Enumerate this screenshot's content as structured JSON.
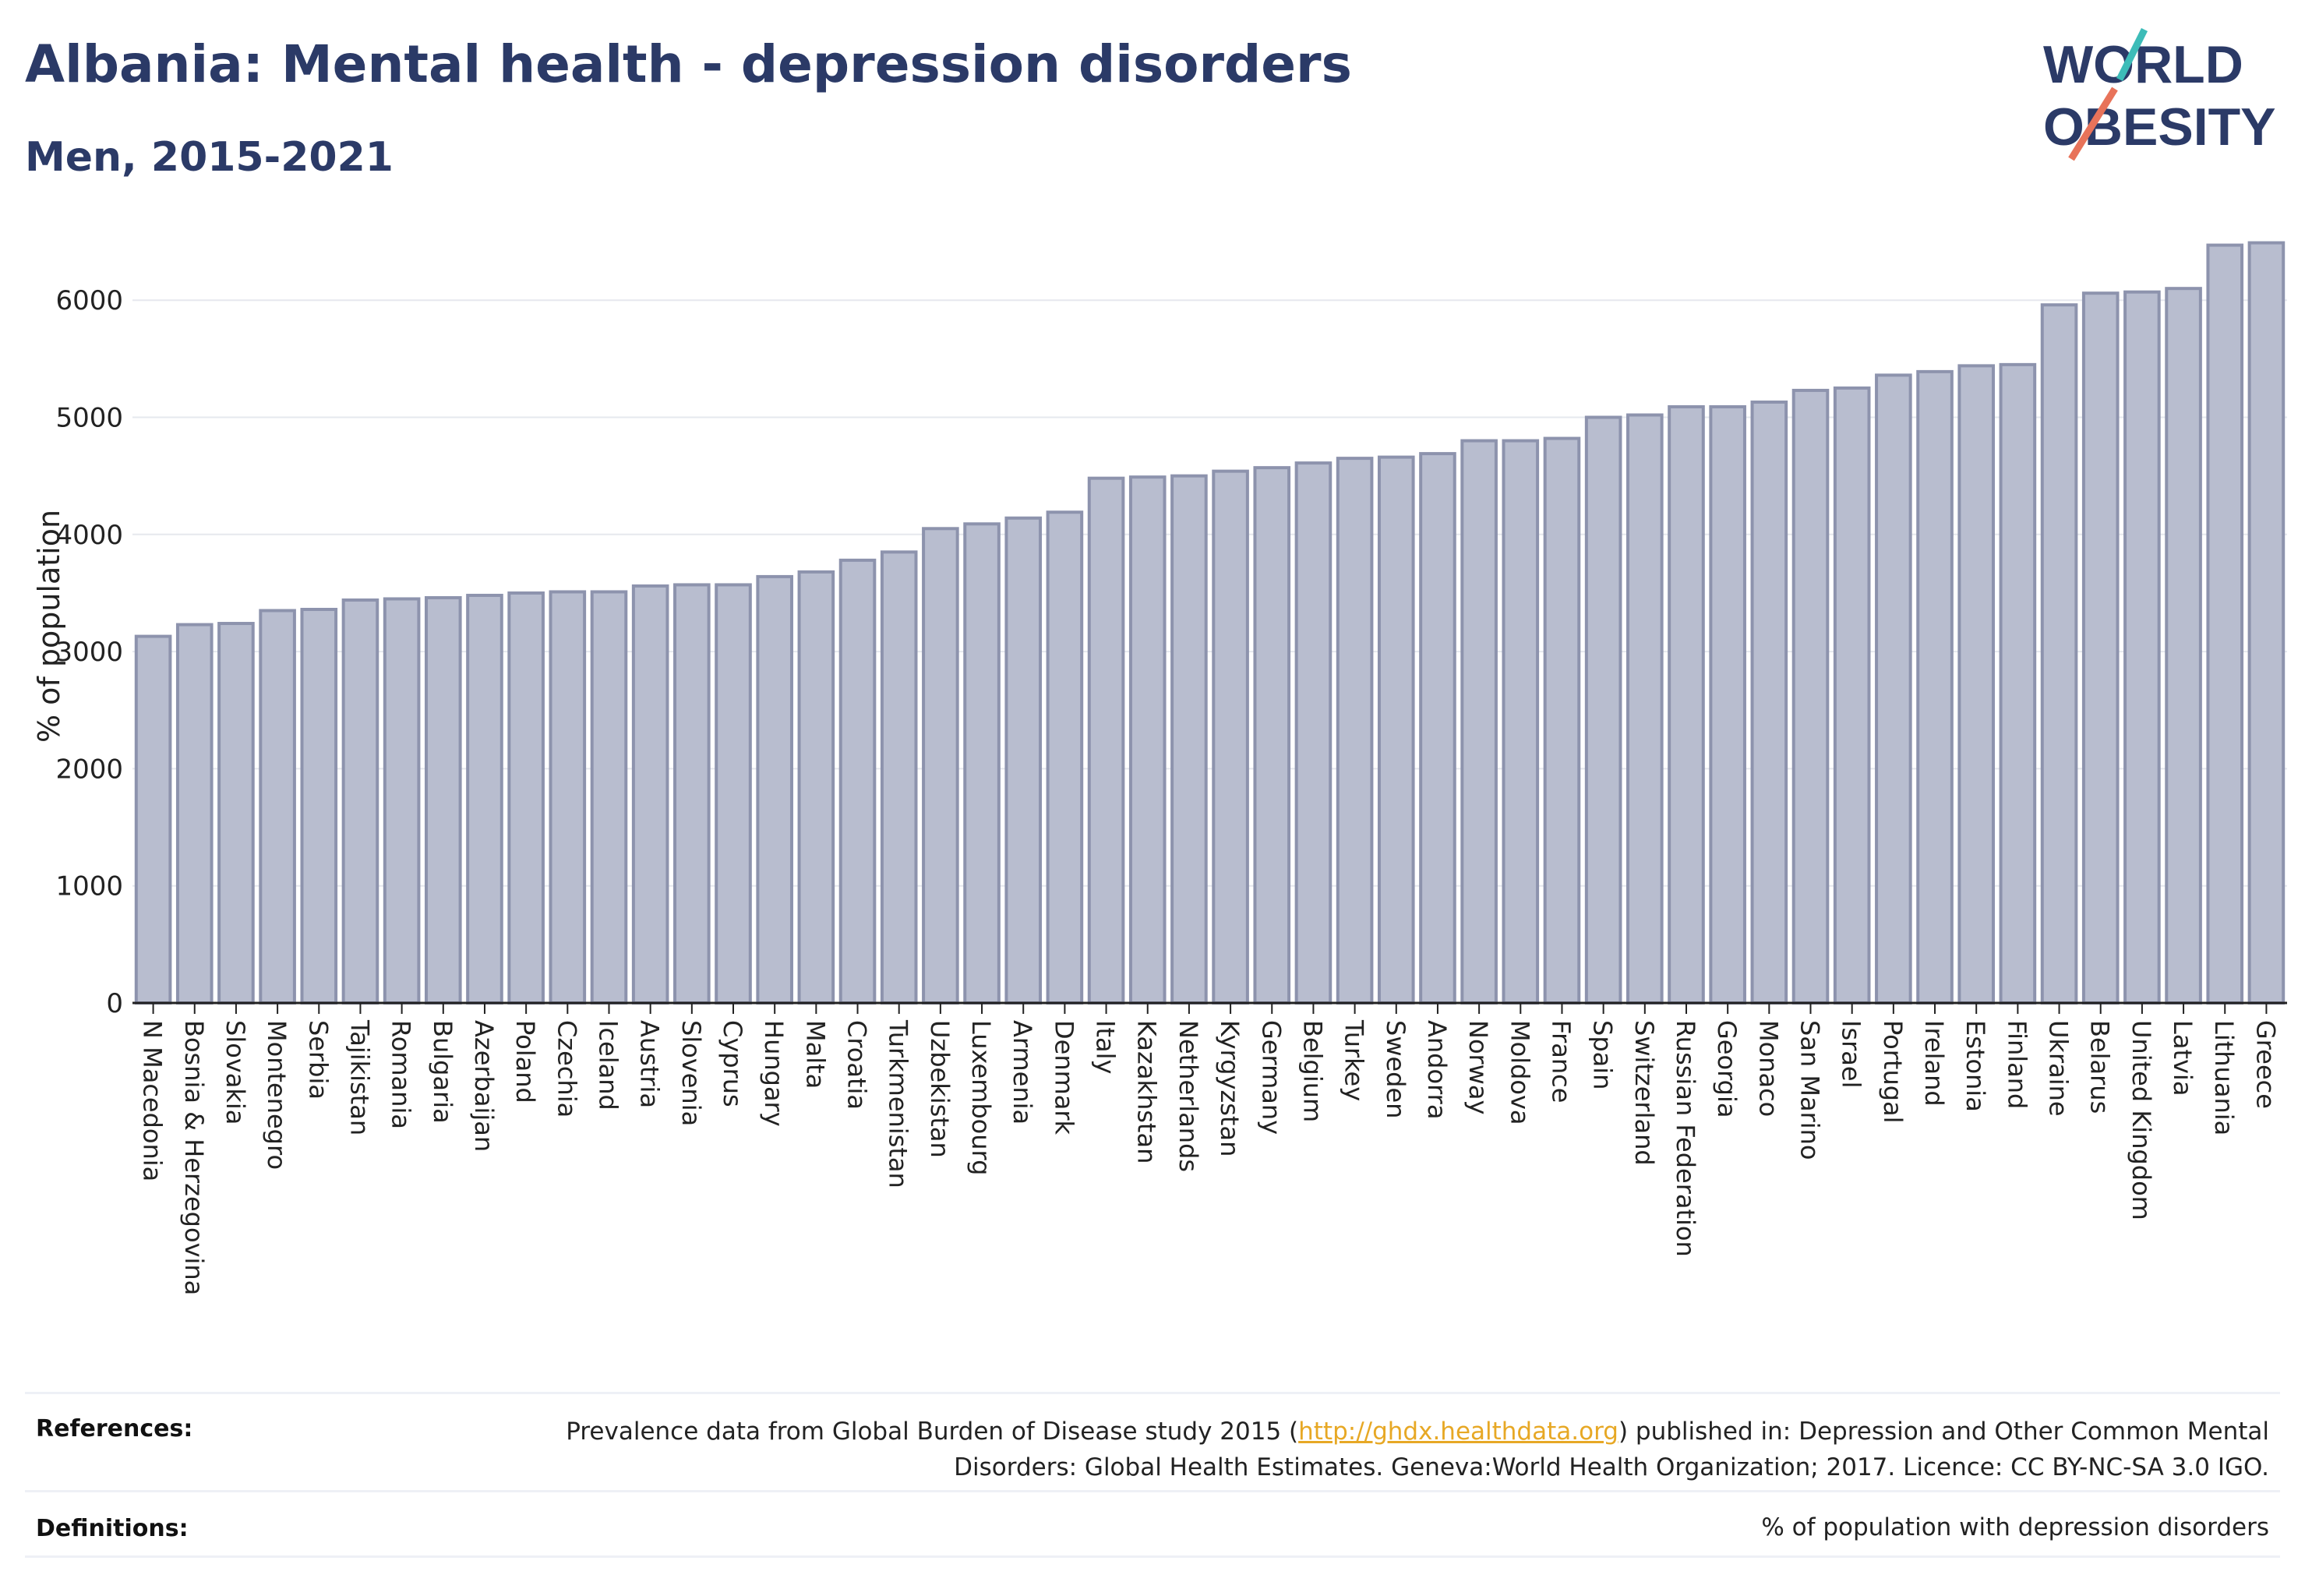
{
  "header": {
    "title": "Albania: Mental health - depression disorders",
    "subtitle": "Men, 2015-2021"
  },
  "logo": {
    "line1": "WORLD",
    "line2": "OBESITY",
    "brand_color": "#2b3a67",
    "slash_colors": [
      "#3dbcb8",
      "#e8735a"
    ]
  },
  "chart_data": {
    "type": "bar",
    "ylabel": "% of population",
    "xlabel": "",
    "ylim": [
      0,
      6700
    ],
    "yticks": [
      0,
      1000,
      2000,
      3000,
      4000,
      5000,
      6000
    ],
    "grid": true,
    "bar_color": "#b8bdcf",
    "bar_edge_color": "#8d93ad",
    "categories": [
      "N Macedonia",
      "Bosnia & Herzegovina",
      "Slovakia",
      "Montenegro",
      "Serbia",
      "Tajikistan",
      "Romania",
      "Bulgaria",
      "Azerbaijan",
      "Poland",
      "Czechia",
      "Iceland",
      "Austria",
      "Slovenia",
      "Cyprus",
      "Hungary",
      "Malta",
      "Croatia",
      "Turkmenistan",
      "Uzbekistan",
      "Luxembourg",
      "Armenia",
      "Denmark",
      "Italy",
      "Kazakhstan",
      "Netherlands",
      "Kyrgyzstan",
      "Germany",
      "Belgium",
      "Turkey",
      "Sweden",
      "Andorra",
      "Norway",
      "Moldova",
      "France",
      "Spain",
      "Switzerland",
      "Russian Federation",
      "Georgia",
      "Monaco",
      "San Marino",
      "Israel",
      "Portugal",
      "Ireland",
      "Estonia",
      "Finland",
      "Ukraine",
      "Belarus",
      "United Kingdom",
      "Latvia",
      "Lithuania",
      "Greece"
    ],
    "values": [
      3130,
      3230,
      3240,
      3350,
      3360,
      3440,
      3450,
      3460,
      3480,
      3500,
      3510,
      3510,
      3560,
      3570,
      3570,
      3640,
      3680,
      3780,
      3850,
      4050,
      4090,
      4140,
      4190,
      4480,
      4490,
      4500,
      4540,
      4570,
      4610,
      4650,
      4660,
      4690,
      4800,
      4800,
      4820,
      5000,
      5020,
      5090,
      5090,
      5130,
      5230,
      5250,
      5360,
      5390,
      5440,
      5450,
      5960,
      6060,
      6070,
      6100,
      6470,
      6490
    ]
  },
  "footer": {
    "references_label": "References:",
    "references_text_before": "Prevalence data from Global Burden of Disease study 2015 (",
    "references_link": "http://ghdx.healthdata.org",
    "references_text_after": ") published in: Depression and Other Common Mental Disorders: Global Health Estimates. Geneva:World Health Organization; 2017. Licence: CC BY-NC-SA 3.0 IGO.",
    "definitions_label": "Definitions:",
    "definitions_text": "% of population with depression disorders"
  }
}
